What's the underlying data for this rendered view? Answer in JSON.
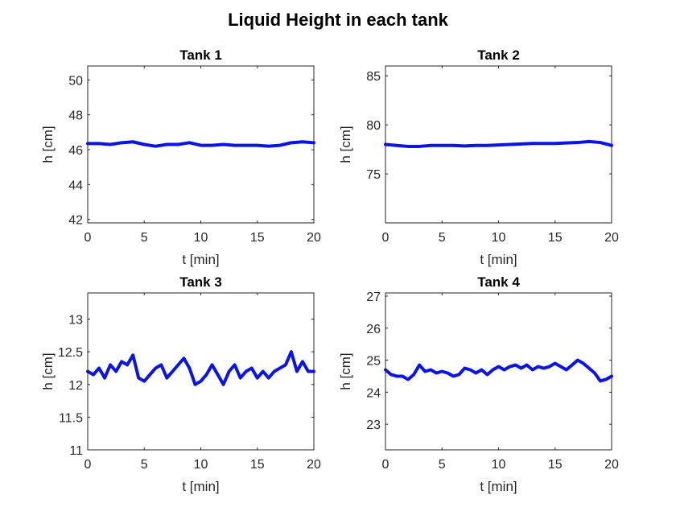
{
  "figure": {
    "title": "Liquid Height in each tank"
  },
  "colors": {
    "line": "#0a14e6",
    "axes": "#262626"
  },
  "chart_data": [
    {
      "type": "line",
      "title": "Tank 1",
      "xlabel": "t [min]",
      "ylabel": "h [cm]",
      "xlim": [
        0,
        20
      ],
      "ylim": [
        41.8,
        50.8
      ],
      "xticks": [
        0,
        5,
        10,
        15,
        20
      ],
      "yticks": [
        42,
        44,
        46,
        48,
        50
      ],
      "grid": false,
      "series": [
        {
          "x": [
            0,
            1,
            2,
            3,
            4,
            5,
            6,
            7,
            8,
            9,
            10,
            11,
            12,
            13,
            14,
            15,
            16,
            17,
            18,
            19,
            20
          ],
          "y": [
            46.35,
            46.35,
            46.3,
            46.4,
            46.45,
            46.3,
            46.2,
            46.3,
            46.3,
            46.4,
            46.25,
            46.25,
            46.3,
            46.25,
            46.25,
            46.25,
            46.2,
            46.25,
            46.4,
            46.45,
            46.4
          ]
        }
      ]
    },
    {
      "type": "line",
      "title": "Tank 2",
      "xlabel": "t [min]",
      "ylabel": "h [cm]",
      "xlim": [
        0,
        20
      ],
      "ylim": [
        70,
        86
      ],
      "xticks": [
        0,
        5,
        10,
        15,
        20
      ],
      "yticks": [
        75,
        80,
        85
      ],
      "grid": false,
      "series": [
        {
          "x": [
            0,
            1,
            2,
            3,
            4,
            5,
            6,
            7,
            8,
            9,
            10,
            11,
            12,
            13,
            14,
            15,
            16,
            17,
            18,
            19,
            20
          ],
          "y": [
            78.0,
            77.9,
            77.8,
            77.8,
            77.9,
            77.9,
            77.9,
            77.85,
            77.9,
            77.9,
            77.95,
            78.0,
            78.05,
            78.1,
            78.1,
            78.1,
            78.15,
            78.2,
            78.3,
            78.2,
            77.9
          ]
        }
      ]
    },
    {
      "type": "line",
      "title": "Tank 3",
      "xlabel": "t [min]",
      "ylabel": "h [cm]",
      "xlim": [
        0,
        20
      ],
      "ylim": [
        11,
        13.4
      ],
      "xticks": [
        0,
        5,
        10,
        15,
        20
      ],
      "yticks": [
        11,
        11.5,
        12,
        12.5,
        13
      ],
      "grid": false,
      "series": [
        {
          "x": [
            0,
            0.5,
            1,
            1.5,
            2,
            2.5,
            3,
            3.5,
            4,
            4.5,
            5,
            5.5,
            6,
            6.5,
            7,
            7.5,
            8,
            8.5,
            9,
            9.5,
            10,
            10.5,
            11,
            11.5,
            12,
            12.5,
            13,
            13.5,
            14,
            14.5,
            15,
            15.5,
            16,
            16.5,
            17,
            17.5,
            18,
            18.5,
            19,
            19.5,
            20
          ],
          "y": [
            12.2,
            12.15,
            12.25,
            12.1,
            12.3,
            12.2,
            12.35,
            12.3,
            12.45,
            12.1,
            12.05,
            12.15,
            12.25,
            12.3,
            12.1,
            12.2,
            12.3,
            12.4,
            12.25,
            12.0,
            12.05,
            12.15,
            12.3,
            12.15,
            12.0,
            12.2,
            12.3,
            12.1,
            12.2,
            12.25,
            12.1,
            12.2,
            12.1,
            12.2,
            12.25,
            12.3,
            12.5,
            12.2,
            12.35,
            12.2,
            12.2
          ]
        }
      ]
    },
    {
      "type": "line",
      "title": "Tank 4",
      "xlabel": "t [min]",
      "ylabel": "h [cm]",
      "xlim": [
        0,
        20
      ],
      "ylim": [
        22.2,
        27.1
      ],
      "xticks": [
        0,
        5,
        10,
        15,
        20
      ],
      "yticks": [
        23,
        24,
        25,
        26,
        27
      ],
      "grid": false,
      "series": [
        {
          "x": [
            0,
            0.5,
            1,
            1.5,
            2,
            2.5,
            3,
            3.5,
            4,
            4.5,
            5,
            5.5,
            6,
            6.5,
            7,
            7.5,
            8,
            8.5,
            9,
            9.5,
            10,
            10.5,
            11,
            11.5,
            12,
            12.5,
            13,
            13.5,
            14,
            14.5,
            15,
            15.5,
            16,
            16.5,
            17,
            17.5,
            18,
            18.5,
            19,
            19.5,
            20
          ],
          "y": [
            24.7,
            24.55,
            24.5,
            24.5,
            24.4,
            24.55,
            24.85,
            24.65,
            24.7,
            24.6,
            24.65,
            24.6,
            24.5,
            24.55,
            24.75,
            24.7,
            24.6,
            24.7,
            24.55,
            24.7,
            24.8,
            24.7,
            24.8,
            24.85,
            24.75,
            24.85,
            24.7,
            24.8,
            24.75,
            24.8,
            24.9,
            24.8,
            24.7,
            24.85,
            25.0,
            24.9,
            24.75,
            24.6,
            24.35,
            24.4,
            24.5
          ]
        }
      ]
    }
  ]
}
